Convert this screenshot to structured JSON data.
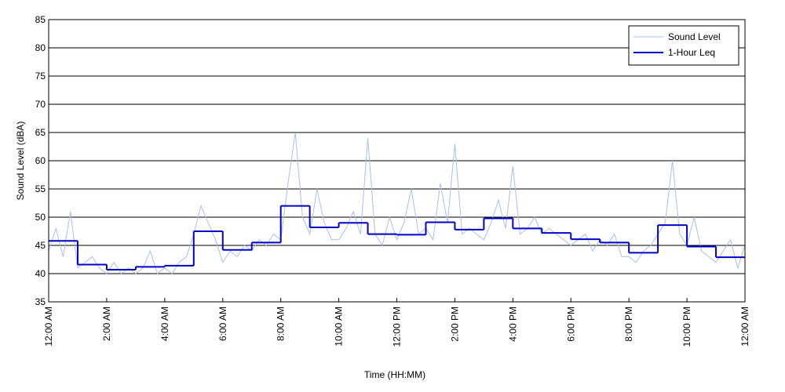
{
  "chart_data": {
    "type": "line",
    "xlabel": "Time (HH:MM)",
    "ylabel": "Sound Level (dBA)",
    "xlim": [
      0,
      24
    ],
    "xticks": [
      {
        "value": 0,
        "label": "12:00 AM"
      },
      {
        "value": 2,
        "label": "2:00 AM"
      },
      {
        "value": 4,
        "label": "4:00 AM"
      },
      {
        "value": 6,
        "label": "6:00 AM"
      },
      {
        "value": 8,
        "label": "8:00 AM"
      },
      {
        "value": 10,
        "label": "10:00 AM"
      },
      {
        "value": 12,
        "label": "12:00 PM"
      },
      {
        "value": 14,
        "label": "2:00 PM"
      },
      {
        "value": 16,
        "label": "4:00 PM"
      },
      {
        "value": 18,
        "label": "6:00 PM"
      },
      {
        "value": 20,
        "label": "8:00 PM"
      },
      {
        "value": 22,
        "label": "10:00 PM"
      },
      {
        "value": 24,
        "label": "12:00 AM"
      }
    ],
    "ylim": [
      35,
      85
    ],
    "yticks": [
      35,
      40,
      45,
      50,
      55,
      60,
      65,
      70,
      75,
      80,
      85
    ],
    "grid": true,
    "legend": "upper right",
    "series": [
      {
        "name": "Sound Level",
        "color": "#a8bff0",
        "style": "line",
        "x": [
          0,
          0.25,
          0.5,
          0.75,
          1,
          1.25,
          1.5,
          1.75,
          2,
          2.25,
          2.5,
          2.75,
          3,
          3.25,
          3.5,
          3.75,
          4,
          4.25,
          4.5,
          4.75,
          5,
          5.25,
          5.5,
          5.75,
          6,
          6.25,
          6.5,
          6.75,
          7,
          7.25,
          7.5,
          7.75,
          8,
          8.25,
          8.5,
          8.75,
          9,
          9.25,
          9.5,
          9.75,
          10,
          10.25,
          10.5,
          10.75,
          11,
          11.25,
          11.5,
          11.75,
          12,
          12.25,
          12.5,
          12.75,
          13,
          13.25,
          13.5,
          13.75,
          14,
          14.25,
          14.5,
          14.75,
          15,
          15.25,
          15.5,
          15.75,
          16,
          16.25,
          16.5,
          16.75,
          17,
          17.25,
          17.5,
          17.75,
          18,
          18.25,
          18.5,
          18.75,
          19,
          19.25,
          19.5,
          19.75,
          20,
          20.25,
          20.5,
          20.75,
          21,
          21.25,
          21.5,
          21.75,
          22,
          22.25,
          22.5,
          22.75,
          23,
          23.25,
          23.5,
          23.75,
          24
        ],
        "values": [
          44,
          48,
          43,
          51,
          41,
          42,
          43,
          41,
          40,
          42,
          40,
          41,
          40,
          41,
          44,
          40,
          41,
          40,
          42,
          43,
          47,
          52,
          49,
          46,
          42,
          44,
          43,
          45,
          44,
          46,
          45,
          47,
          46,
          56,
          65,
          50,
          47,
          55,
          49,
          46,
          46,
          48,
          51,
          47,
          64,
          47,
          45,
          50,
          46,
          49,
          55,
          47,
          48,
          46,
          56,
          49,
          63,
          47,
          48,
          47,
          46,
          49,
          53,
          48,
          59,
          47,
          48,
          50,
          47,
          48,
          47,
          46,
          45,
          46,
          47,
          44,
          46,
          45,
          47,
          43,
          43,
          42,
          44,
          45,
          47,
          49,
          60,
          47,
          45,
          50,
          44,
          43,
          42,
          44,
          46,
          41,
          45
        ]
      },
      {
        "name": "1-Hour Leq",
        "color": "#0000cc",
        "style": "steps-post",
        "x": [
          0,
          1,
          2,
          3,
          4,
          5,
          6,
          7,
          8,
          9,
          10,
          11,
          12,
          13,
          14,
          15,
          16,
          17,
          18,
          19,
          20,
          21,
          22,
          23
        ],
        "values": [
          45.8,
          41.6,
          40.7,
          41.2,
          41.4,
          47.5,
          44.2,
          45.5,
          52,
          48.2,
          49,
          47,
          46.9,
          49.1,
          47.8,
          49.8,
          48,
          47.2,
          46.1,
          45.5,
          43.7,
          48.6,
          44.8,
          42.9
        ]
      }
    ]
  }
}
